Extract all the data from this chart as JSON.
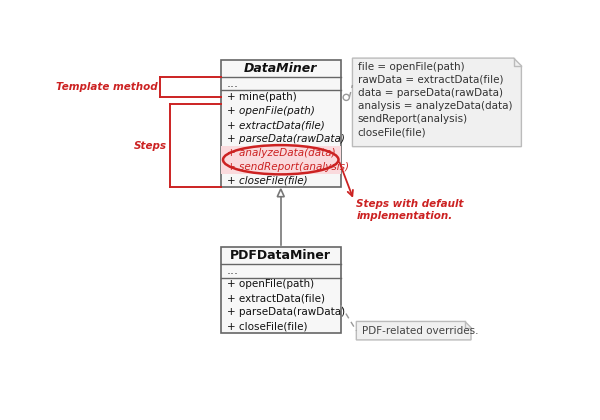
{
  "bg_color": "#ffffff",
  "box_border_color": "#666666",
  "box_fill_color": "#f7f7f7",
  "red_color": "#cc2222",
  "pink_fill": "#fadadd",
  "note_fill": "#f0f0f0",
  "note_border": "#bbbbbb",
  "dm_title": "DataMiner",
  "dm_dots": "...",
  "dm_methods": [
    "+ mine(path)",
    "+ openFile(path)",
    "+ extractData(file)",
    "+ parseData(rawData)",
    "+ analyzeData(data)",
    "+ sendReport(analysis)",
    "+ closeFile(file)"
  ],
  "dm_italic_indices": [
    1,
    2,
    3,
    4,
    5,
    6
  ],
  "dm_highlight_indices": [
    4,
    5
  ],
  "pdf_title": "PDFDataMiner",
  "pdf_dots": "...",
  "pdf_methods": [
    "+ openFile(path)",
    "+ extractData(file)",
    "+ parseData(rawData)",
    "+ closeFile(file)"
  ],
  "note1_lines": [
    "file = openFile(path)",
    "rawData = extractData(file)",
    "data = parseData(rawData)",
    "analysis = analyzeData(data)",
    "sendReport(analysis)",
    "closeFile(file)"
  ],
  "note2_text": "PDF-related overrides.",
  "label_template": "Template method",
  "label_steps": "Steps",
  "label_steps_default": "Steps with default\nimplementation."
}
